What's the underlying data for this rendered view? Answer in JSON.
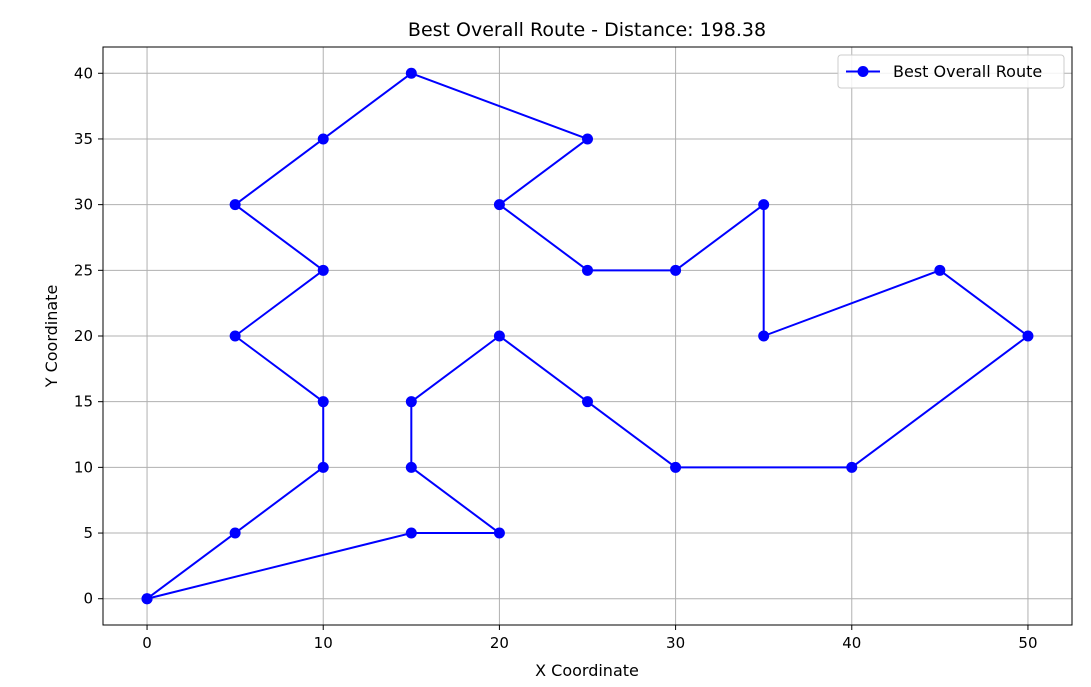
{
  "chart_data": {
    "type": "line",
    "title": "Best Overall Route - Distance: 198.38",
    "xlabel": "X Coordinate",
    "ylabel": "Y Coordinate",
    "xlim": [
      -2.5,
      52.5
    ],
    "ylim": [
      -2,
      42
    ],
    "xticks": [
      0,
      10,
      20,
      30,
      40,
      50
    ],
    "yticks": [
      0,
      5,
      10,
      15,
      20,
      25,
      30,
      35,
      40
    ],
    "grid": true,
    "legend_position": "top-right",
    "series": [
      {
        "name": "Best Overall Route",
        "color": "#0000ff",
        "marker": "circle",
        "x": [
          0,
          5,
          10,
          10,
          5,
          10,
          5,
          10,
          15,
          25,
          20,
          25,
          30,
          35,
          35,
          45,
          50,
          40,
          30,
          25,
          20,
          15,
          15,
          20,
          15,
          0
        ],
        "y": [
          0,
          5,
          10,
          15,
          20,
          25,
          30,
          35,
          40,
          35,
          30,
          25,
          25,
          30,
          20,
          25,
          20,
          10,
          10,
          15,
          20,
          15,
          10,
          5,
          5,
          0
        ]
      }
    ]
  }
}
